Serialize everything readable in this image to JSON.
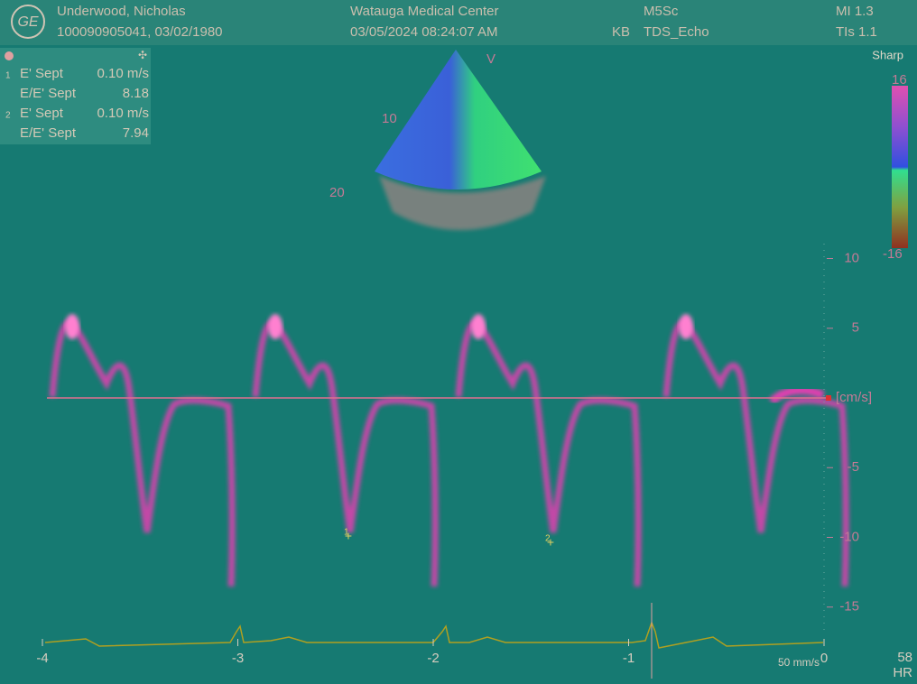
{
  "header": {
    "patient_name": "Underwood, Nicholas",
    "patient_id": "100090905041, 03/02/1980",
    "institution": "Watauga Medical Center",
    "datetime": "03/05/2024 08:24:07 AM",
    "operator": "KB",
    "probe": "M5Sc",
    "preset": "TDS_Echo",
    "mi": "MI 1.3",
    "tis": "TIs 1.1"
  },
  "measurements": [
    {
      "index": "1",
      "label": "E' Sept",
      "value": "0.10 m/s"
    },
    {
      "label": "E/E' Sept",
      "value": "8.18"
    },
    {
      "index": "2",
      "label": "E' Sept",
      "value": "0.10 m/s"
    },
    {
      "label": "E/E' Sept",
      "value": "7.94"
    }
  ],
  "image": {
    "map": "Sharp",
    "colorbar_max": "16",
    "colorbar_min": "-16",
    "depth_labels": [
      "10",
      "20"
    ],
    "sample_marker": "V"
  },
  "velocity_axis": {
    "ticks": [
      10,
      5,
      -5,
      -10,
      -15
    ],
    "unit": "[cm/s]"
  },
  "time_axis": {
    "ticks": [
      -4,
      -3,
      -2,
      -1,
      0
    ]
  },
  "markers": [
    "1",
    "2"
  ],
  "sweep_speed": "50 mm/s",
  "heart_rate": {
    "value": "58",
    "label": "HR"
  }
}
